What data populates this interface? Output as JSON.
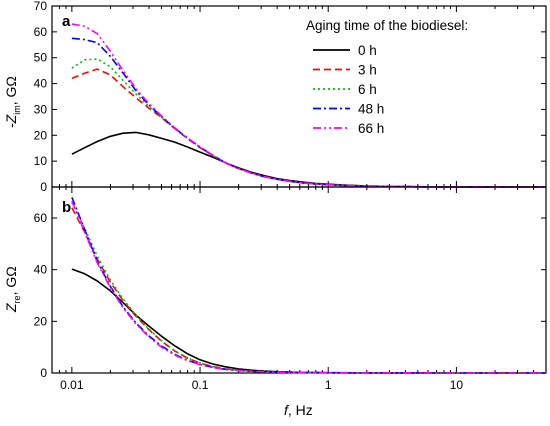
{
  "chart_data": [
    {
      "panel": "a",
      "type": "line",
      "ylabel": "-Z",
      "ylabel_sub": "im",
      "ylabel_unit": ", GΩ",
      "xscale": "log",
      "xlim": [
        0.007,
        50
      ],
      "ylim": [
        0,
        70
      ],
      "yticks": [
        0,
        10,
        20,
        30,
        40,
        50,
        60,
        70
      ],
      "legend_title": "Aging time of the biodiesel:",
      "legend_position": "top-right",
      "series": [
        {
          "name": "0 h",
          "color": "#000000",
          "dash": "solid",
          "x": [
            0.01,
            0.0126,
            0.0158,
            0.02,
            0.0251,
            0.0316,
            0.0398,
            0.0501,
            0.0631,
            0.0794,
            0.1,
            0.126,
            0.158,
            0.2,
            0.251,
            0.316,
            0.398,
            0.501,
            0.631,
            0.794,
            1,
            1.26,
            1.58,
            2,
            3.16,
            5.01,
            7.94,
            10,
            15.8,
            25.1,
            39.8,
            50
          ],
          "y": [
            12.7,
            15.2,
            17.6,
            19.6,
            20.8,
            21.1,
            20.2,
            18.8,
            17.4,
            15.5,
            13.5,
            11.5,
            9.4,
            7.4,
            5.7,
            4.4,
            3.3,
            2.5,
            1.9,
            1.4,
            1.1,
            0.8,
            0.6,
            0.4,
            0.2,
            0.1,
            0.05,
            0.03,
            0.02,
            0.01,
            0.01,
            0.01
          ]
        },
        {
          "name": "3 h",
          "color": "#ff0000",
          "dash": "dashed",
          "x": [
            0.01,
            0.0126,
            0.0158,
            0.02,
            0.0251,
            0.0316,
            0.0398,
            0.0501,
            0.0631,
            0.0794,
            0.1,
            0.126,
            0.158,
            0.2,
            0.251,
            0.316,
            0.398,
            0.501,
            0.631,
            0.794,
            1,
            1.26,
            1.58,
            2,
            3.16,
            5.01,
            7.94,
            10,
            15.8,
            25.1,
            39.8,
            50
          ],
          "y": [
            42,
            44,
            45.6,
            43.3,
            38.8,
            34.5,
            30.5,
            26.8,
            22.7,
            18.8,
            15.2,
            12.1,
            9.3,
            7.1,
            5.4,
            4.0,
            3.0,
            2.2,
            1.6,
            1.2,
            0.9,
            0.65,
            0.48,
            0.35,
            0.18,
            0.09,
            0.05,
            0.03,
            0.02,
            0.01,
            0.01,
            0.01
          ]
        },
        {
          "name": "6 h",
          "color": "#00c000",
          "dash": "dotted",
          "x": [
            0.01,
            0.0126,
            0.0158,
            0.02,
            0.0251,
            0.0316,
            0.0398,
            0.0501,
            0.0631,
            0.0794,
            0.1,
            0.126,
            0.158,
            0.2,
            0.251,
            0.316,
            0.398,
            0.501,
            0.631,
            0.794,
            1,
            1.26,
            1.58,
            2,
            3.16,
            5.01,
            7.94,
            10,
            15.8,
            25.1,
            39.8,
            50
          ],
          "y": [
            46,
            49.2,
            49.5,
            46.5,
            41.2,
            36,
            31.2,
            27,
            22.8,
            19,
            15.4,
            12.2,
            9.4,
            7.1,
            5.4,
            4.0,
            3.0,
            2.2,
            1.6,
            1.2,
            0.9,
            0.65,
            0.48,
            0.35,
            0.18,
            0.09,
            0.05,
            0.03,
            0.02,
            0.01,
            0.01,
            0.01
          ]
        },
        {
          "name": "48 h",
          "color": "#0000ff",
          "dash": "dashdot",
          "x": [
            0.01,
            0.0126,
            0.0158,
            0.02,
            0.0251,
            0.0316,
            0.0398,
            0.0501,
            0.0631,
            0.0794,
            0.1,
            0.126,
            0.158,
            0.2,
            0.251,
            0.316,
            0.398,
            0.501,
            0.631,
            0.794,
            1,
            1.26,
            1.58,
            2,
            3.16,
            5.01,
            7.94,
            10,
            15.8,
            25.1,
            39.8,
            50
          ],
          "y": [
            57.5,
            57,
            55.8,
            50.5,
            44,
            37.3,
            31.8,
            27.2,
            22.8,
            19,
            15.4,
            12.2,
            9.4,
            7.1,
            5.4,
            4.0,
            3.0,
            2.2,
            1.6,
            1.2,
            0.9,
            0.65,
            0.48,
            0.35,
            0.18,
            0.09,
            0.05,
            0.03,
            0.02,
            0.01,
            0.01,
            0.01
          ]
        },
        {
          "name": "66 h",
          "color": "#ff00ff",
          "dash": "dashdotdot",
          "x": [
            0.01,
            0.0126,
            0.0158,
            0.02,
            0.0251,
            0.0316,
            0.0398,
            0.0501,
            0.0631,
            0.0794,
            0.1,
            0.126,
            0.158,
            0.2,
            0.251,
            0.316,
            0.398,
            0.501,
            0.631,
            0.794,
            1,
            1.26,
            1.58,
            2,
            3.16,
            5.01,
            7.94,
            10,
            15.8,
            25.1,
            39.8,
            50
          ],
          "y": [
            63,
            62.2,
            59.3,
            52.5,
            45,
            38,
            32.3,
            27.5,
            23,
            19.1,
            15.5,
            12.3,
            9.4,
            7.1,
            5.4,
            4.0,
            3.0,
            2.2,
            1.6,
            1.2,
            0.9,
            0.65,
            0.48,
            0.35,
            0.18,
            0.09,
            0.05,
            0.03,
            0.02,
            0.01,
            0.01,
            0.01
          ]
        }
      ]
    },
    {
      "panel": "b",
      "type": "line",
      "xlabel": "f",
      "xlabel_unit": ",  Hz",
      "ylabel": "Z",
      "ylabel_sub": "re",
      "ylabel_unit": ", GΩ",
      "xscale": "log",
      "xlim": [
        0.007,
        50
      ],
      "ylim": [
        0,
        72
      ],
      "yticks": [
        0,
        20,
        40,
        60
      ],
      "xticks": [
        0.01,
        0.1,
        1,
        10
      ],
      "xtick_labels": [
        "0.01",
        "0.1",
        "1",
        "10"
      ],
      "series": [
        {
          "name": "0 h",
          "color": "#000000",
          "dash": "solid",
          "x": [
            0.01,
            0.0126,
            0.0158,
            0.02,
            0.0251,
            0.0316,
            0.0398,
            0.0501,
            0.0631,
            0.0794,
            0.1,
            0.126,
            0.158,
            0.2,
            0.251,
            0.316,
            0.398,
            0.501,
            0.631,
            0.794,
            1,
            1.58,
            2.51,
            3.98,
            6.31,
            10,
            15.8,
            25.1,
            39.8,
            50
          ],
          "y": [
            40.2,
            38.4,
            35.6,
            31.8,
            27.2,
            22.4,
            18.2,
            14.2,
            10.6,
            7.5,
            5.1,
            3.5,
            2.4,
            1.6,
            1.1,
            0.75,
            0.5,
            0.35,
            0.25,
            0.18,
            0.13,
            0.08,
            0.05,
            0.03,
            0.02,
            0.01,
            0.01,
            0.01,
            0.01,
            0.01
          ]
        },
        {
          "name": "3 h",
          "color": "#ff0000",
          "dash": "dashed",
          "x": [
            0.01,
            0.0126,
            0.0158,
            0.02,
            0.0251,
            0.0316,
            0.0398,
            0.0501,
            0.0631,
            0.0794,
            0.1,
            0.126,
            0.158,
            0.2,
            0.251,
            0.316,
            0.398,
            0.501,
            0.631,
            0.794,
            1,
            1.58,
            2.51,
            3.98,
            6.31,
            10,
            15.8,
            25.1,
            39.8,
            50
          ],
          "y": [
            64,
            54.5,
            44,
            35.2,
            28,
            22,
            16.8,
            12.3,
            8.6,
            5.8,
            3.8,
            2.5,
            1.6,
            1.1,
            0.75,
            0.5,
            0.35,
            0.25,
            0.18,
            0.13,
            0.1,
            0.06,
            0.04,
            0.03,
            0.02,
            0.01,
            0.01,
            0.01,
            0.01,
            0.01
          ]
        },
        {
          "name": "6 h",
          "color": "#00c000",
          "dash": "dotted",
          "x": [
            0.01,
            0.0126,
            0.0158,
            0.02,
            0.0251,
            0.0316,
            0.0398,
            0.0501,
            0.0631,
            0.0794,
            0.1,
            0.126,
            0.158,
            0.2,
            0.251,
            0.316,
            0.398,
            0.501,
            0.631,
            0.794,
            1,
            1.58,
            2.51,
            3.98,
            6.31,
            10,
            15.8,
            25.1,
            39.8,
            50
          ],
          "y": [
            66,
            56,
            45.2,
            36,
            28.6,
            22.4,
            17,
            12.5,
            8.7,
            5.9,
            3.9,
            2.5,
            1.6,
            1.1,
            0.75,
            0.5,
            0.35,
            0.25,
            0.18,
            0.13,
            0.1,
            0.06,
            0.04,
            0.03,
            0.02,
            0.01,
            0.01,
            0.01,
            0.01,
            0.01
          ]
        },
        {
          "name": "48 h",
          "color": "#0000ff",
          "dash": "dashdot",
          "x": [
            0.01,
            0.0126,
            0.0158,
            0.02,
            0.0251,
            0.0316,
            0.0398,
            0.0501,
            0.0631,
            0.0794,
            0.1,
            0.126,
            0.158,
            0.2,
            0.251,
            0.316,
            0.398,
            0.501,
            0.631,
            0.794,
            1,
            1.58,
            2.51,
            3.98,
            6.31,
            10,
            15.8,
            25.1,
            39.8,
            50
          ],
          "y": [
            68,
            55.5,
            43.2,
            33.5,
            25.6,
            19.4,
            14.4,
            10.4,
            7.3,
            5.0,
            3.3,
            2.2,
            1.4,
            0.95,
            0.65,
            0.45,
            0.3,
            0.22,
            0.16,
            0.12,
            0.09,
            0.05,
            0.03,
            0.02,
            0.01,
            0.01,
            0.01,
            0.01,
            0.01,
            0.01
          ]
        },
        {
          "name": "66 h",
          "color": "#ff00ff",
          "dash": "dashdotdot",
          "x": [
            0.01,
            0.0126,
            0.0158,
            0.02,
            0.0251,
            0.0316,
            0.0398,
            0.0501,
            0.0631,
            0.0794,
            0.1,
            0.126,
            0.158,
            0.2,
            0.251,
            0.316,
            0.398,
            0.501,
            0.631,
            0.794,
            1,
            1.58,
            2.51,
            3.98,
            6.31,
            10,
            15.8,
            25.1,
            39.8,
            50
          ],
          "y": [
            66.5,
            54.5,
            42.6,
            33,
            25.2,
            19,
            14,
            10,
            7.0,
            4.8,
            3.2,
            2.1,
            1.4,
            0.95,
            0.65,
            0.45,
            0.3,
            0.22,
            0.16,
            0.12,
            0.09,
            0.05,
            0.03,
            0.02,
            0.01,
            0.01,
            0.01,
            0.01,
            0.01,
            0.01
          ]
        }
      ]
    }
  ]
}
